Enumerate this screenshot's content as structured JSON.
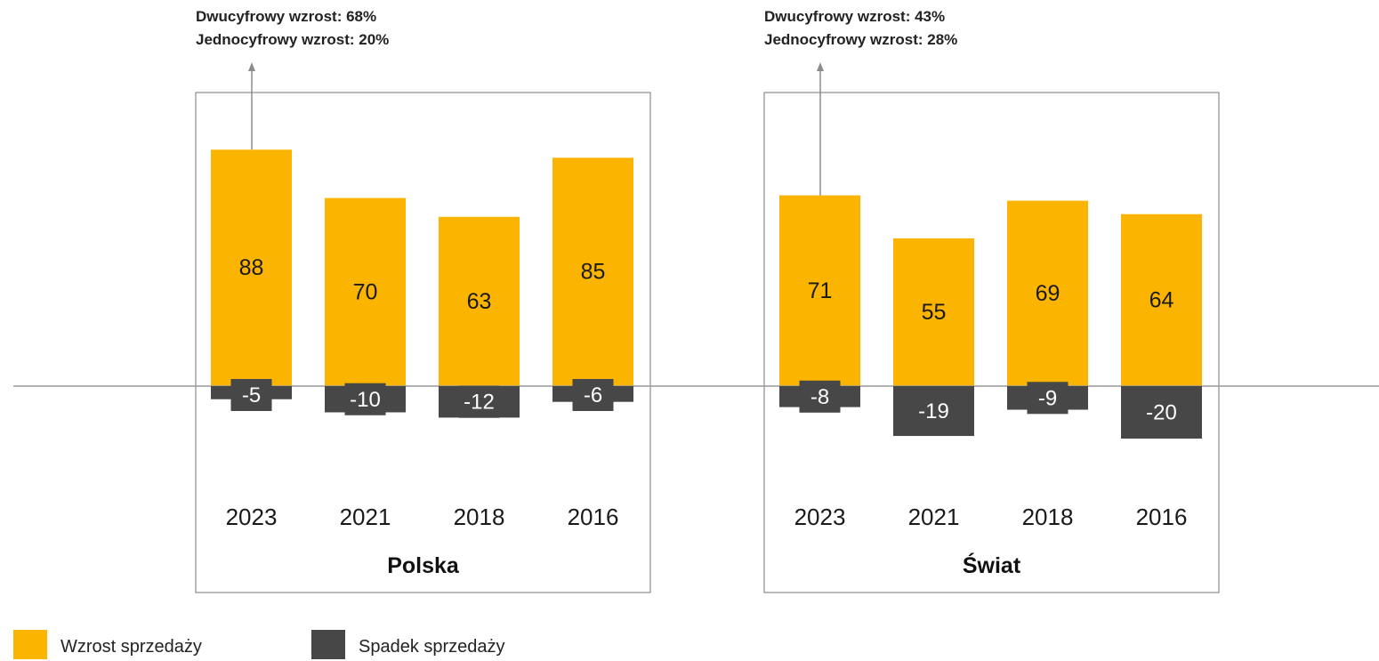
{
  "chart_data": [
    {
      "type": "bar",
      "title": "Polska",
      "annotation": [
        "Dwucyfrowy wzrost: 68%",
        "Jednocyfrowy wzrost: 20%"
      ],
      "categories": [
        "2023",
        "2021",
        "2018",
        "2016"
      ],
      "series": [
        {
          "name": "Wzrost sprzedaży",
          "values": [
            88,
            70,
            63,
            85
          ],
          "color": "#FBB400"
        },
        {
          "name": "Spadek sprzedaży",
          "values": [
            -5,
            -10,
            -12,
            -6
          ],
          "color": "#474747"
        }
      ]
    },
    {
      "type": "bar",
      "title": "Świat",
      "annotation": [
        "Dwucyfrowy wzrost: 43%",
        "Jednocyfrowy wzrost: 28%"
      ],
      "categories": [
        "2023",
        "2021",
        "2018",
        "2016"
      ],
      "series": [
        {
          "name": "Wzrost sprzedaży",
          "values": [
            71,
            55,
            69,
            64
          ],
          "color": "#FBB400"
        },
        {
          "name": "Spadek sprzedaży",
          "values": [
            -8,
            -19,
            -9,
            -20
          ],
          "color": "#474747"
        }
      ]
    }
  ],
  "legend": {
    "placement": "bottom-left",
    "items": [
      {
        "label": "Wzrost sprzedaży",
        "color": "#FBB400"
      },
      {
        "label": "Spadek sprzedaży",
        "color": "#474747"
      }
    ]
  }
}
